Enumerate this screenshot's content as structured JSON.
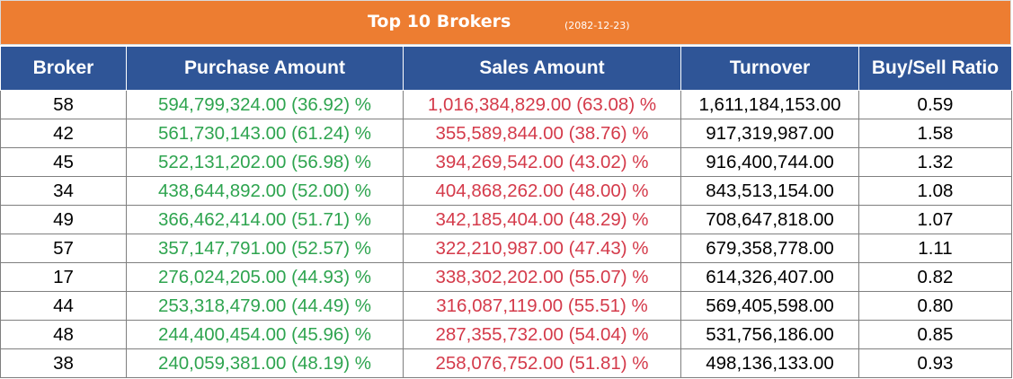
{
  "title": "Top 10 Brokers",
  "date": "(2082-12-23)",
  "colors": {
    "title_bar": "#ED7D31",
    "header": "#2F5597",
    "buy_text": "#2EA44F",
    "sell_text": "#D43A4A"
  },
  "columns": [
    "Broker",
    "Purchase Amount",
    "Sales Amount",
    "Turnover",
    "Buy/Sell Ratio"
  ],
  "rows": [
    {
      "broker": "58",
      "purchase": "594,799,324.00 (36.92) %",
      "sales": "1,016,384,829.00 (63.08) %",
      "turnover": "1,611,184,153.00",
      "ratio": "0.59"
    },
    {
      "broker": "42",
      "purchase": "561,730,143.00 (61.24) %",
      "sales": "355,589,844.00 (38.76) %",
      "turnover": "917,319,987.00",
      "ratio": "1.58"
    },
    {
      "broker": "45",
      "purchase": "522,131,202.00 (56.98) %",
      "sales": "394,269,542.00 (43.02) %",
      "turnover": "916,400,744.00",
      "ratio": "1.32"
    },
    {
      "broker": "34",
      "purchase": "438,644,892.00 (52.00) %",
      "sales": "404,868,262.00 (48.00) %",
      "turnover": "843,513,154.00",
      "ratio": "1.08"
    },
    {
      "broker": "49",
      "purchase": "366,462,414.00 (51.71) %",
      "sales": "342,185,404.00 (48.29) %",
      "turnover": "708,647,818.00",
      "ratio": "1.07"
    },
    {
      "broker": "57",
      "purchase": "357,147,791.00 (52.57) %",
      "sales": "322,210,987.00 (47.43) %",
      "turnover": "679,358,778.00",
      "ratio": "1.11"
    },
    {
      "broker": "17",
      "purchase": "276,024,205.00 (44.93) %",
      "sales": "338,302,202.00 (55.07) %",
      "turnover": "614,326,407.00",
      "ratio": "0.82"
    },
    {
      "broker": "44",
      "purchase": "253,318,479.00 (44.49) %",
      "sales": "316,087,119.00 (55.51) %",
      "turnover": "569,405,598.00",
      "ratio": "0.80"
    },
    {
      "broker": "48",
      "purchase": "244,400,454.00 (45.96) %",
      "sales": "287,355,732.00 (54.04) %",
      "turnover": "531,756,186.00",
      "ratio": "0.85"
    },
    {
      "broker": "38",
      "purchase": "240,059,381.00 (48.19) %",
      "sales": "258,076,752.00 (51.81) %",
      "turnover": "498,136,133.00",
      "ratio": "0.93"
    }
  ]
}
